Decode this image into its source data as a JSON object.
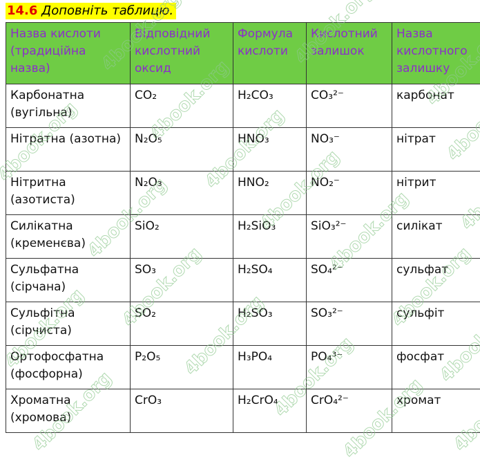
{
  "title": {
    "number": "14.6",
    "text": "Доповніть таблицю."
  },
  "watermark": "4book.org",
  "headers": [
    "Назва кислоти (традиційна назва)",
    "Відповідний кислотний оксид",
    "Формула кислоти",
    "Кислотний залишок",
    "Назва кислотного залишку"
  ],
  "rows": [
    [
      "Карбонатна (вугільна)",
      "CO₂",
      "H₂CO₃",
      "CO₃²⁻",
      "карбонат"
    ],
    [
      "Нітратна (азотна)",
      "N₂O₅",
      "HNO₃",
      "NO₃⁻",
      "нітрат"
    ],
    [
      "Нітритна (азотиста)",
      "N₂O₃",
      "HNO₂",
      "NO₂⁻",
      "нітрит"
    ],
    [
      "Силікатна (кременєва)",
      "SiO₂",
      "H₂SiO₃",
      "SiO₃²⁻",
      "силікат"
    ],
    [
      "Сульфатна (сірчана)",
      "SO₃",
      "H₂SO₄",
      "SO₄²⁻",
      "сульфат"
    ],
    [
      "Сульфітна (сірчиста)",
      "SO₂",
      "H₂SO₃",
      "SO₃²⁻",
      "сульфіт"
    ],
    [
      "Ортофосфатна (фосфорна)",
      "P₂O₅",
      "H₃PO₄",
      "PO₄³⁻",
      "фосфат"
    ],
    [
      "Хроматна (хромова)",
      "CrO₃",
      "H₂CrO₄",
      "CrO₄²⁻",
      "хромат"
    ]
  ]
}
